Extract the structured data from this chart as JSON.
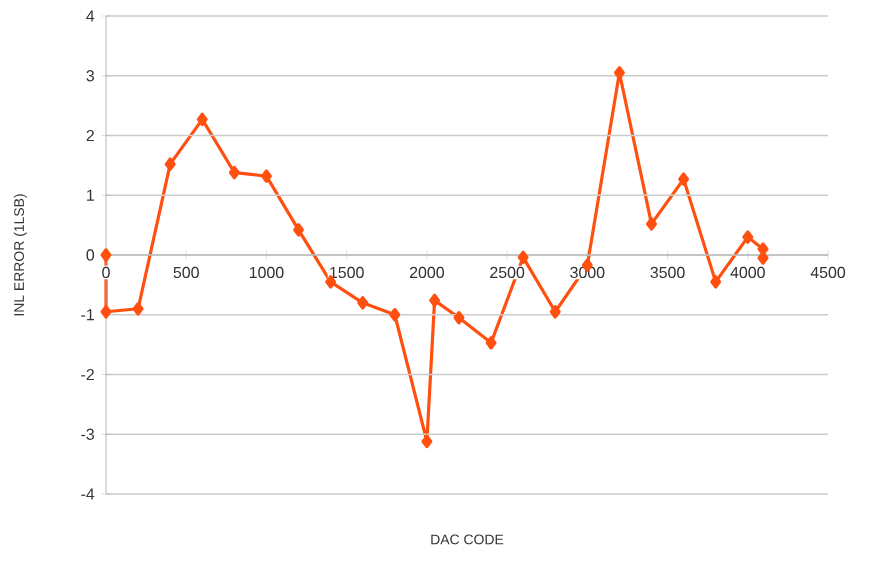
{
  "chart_data": {
    "type": "line",
    "xlabel": "DAC CODE",
    "ylabel": "INL ERROR (1LSB)",
    "x": [
      0,
      0,
      200,
      400,
      600,
      800,
      1000,
      1200,
      1400,
      1600,
      1800,
      2000,
      2048,
      2200,
      2400,
      2600,
      2800,
      3000,
      3200,
      3400,
      3600,
      3800,
      4000,
      4095,
      4095
    ],
    "series": [
      {
        "color": "#ff5010",
        "values": [
          0,
          -0.95,
          -0.9,
          1.52,
          2.27,
          1.38,
          1.32,
          0.42,
          -0.45,
          -0.8,
          -1.0,
          -3.12,
          -0.76,
          -1.05,
          -1.47,
          -0.04,
          -0.95,
          -0.17,
          3.05,
          0.52,
          1.27,
          -0.45,
          0.3,
          0.1,
          -0.05
        ]
      }
    ],
    "xlim": [
      0,
      4500
    ],
    "xticks": [
      0,
      500,
      1000,
      1500,
      2000,
      2500,
      3000,
      3500,
      4000,
      4500
    ],
    "ylim": [
      -4,
      4
    ],
    "yticks": [
      -4,
      -3,
      -2,
      -1,
      0,
      1,
      2,
      3,
      4
    ],
    "grid": "y",
    "marker": "diamond",
    "line_style": "solid"
  }
}
